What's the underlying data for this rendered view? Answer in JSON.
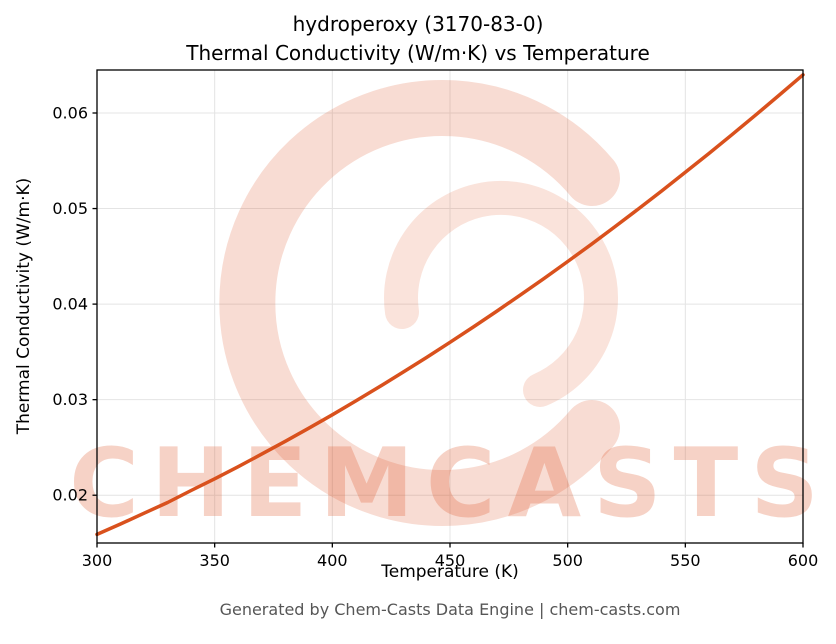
{
  "header": {
    "title_line1": "hydroperoxy (3170-83-0)",
    "title_line2": "Thermal Conductivity (W/m·K) vs Temperature"
  },
  "footer": {
    "text": "Generated by Chem-Casts Data Engine | chem-casts.com"
  },
  "watermark": {
    "text": "CHEMCASTS",
    "logo": "chemcasts-c-swirl-logo"
  },
  "colors": {
    "line": "#d9511d",
    "watermark": "#dd5022",
    "grid": "#e4e4e4",
    "axis": "#000000",
    "tick_label": "#000000",
    "footer_text": "#565656"
  },
  "chart_data": {
    "type": "line",
    "title": "hydroperoxy (3170-83-0)\nThermal Conductivity (W/m·K) vs Temperature",
    "xlabel": "Temperature (K)",
    "ylabel": "Thermal Conductivity (W/m·K)",
    "series_name": "Thermal Conductivity (W/m·K)",
    "x": [
      300,
      310,
      320,
      330,
      340,
      350,
      360,
      370,
      380,
      390,
      400,
      410,
      420,
      430,
      440,
      450,
      460,
      470,
      480,
      490,
      500,
      510,
      520,
      530,
      540,
      550,
      560,
      570,
      580,
      590,
      600
    ],
    "y": [
      0.0159,
      0.01699,
      0.01812,
      0.01924,
      0.02049,
      0.02172,
      0.02299,
      0.0243,
      0.02564,
      0.02701,
      0.02842,
      0.02987,
      0.03135,
      0.03286,
      0.03441,
      0.036,
      0.03762,
      0.03928,
      0.04097,
      0.04269,
      0.04446,
      0.04625,
      0.04808,
      0.04995,
      0.05185,
      0.05379,
      0.05576,
      0.05777,
      0.05981,
      0.06189,
      0.064
    ],
    "xlim": [
      300,
      600
    ],
    "ylim": [
      0.015,
      0.0645
    ],
    "xticks": [
      300,
      350,
      400,
      450,
      500,
      550,
      600
    ],
    "yticks": [
      0.02,
      0.03,
      0.04,
      0.05,
      0.06
    ],
    "grid": true,
    "legend": false
  }
}
